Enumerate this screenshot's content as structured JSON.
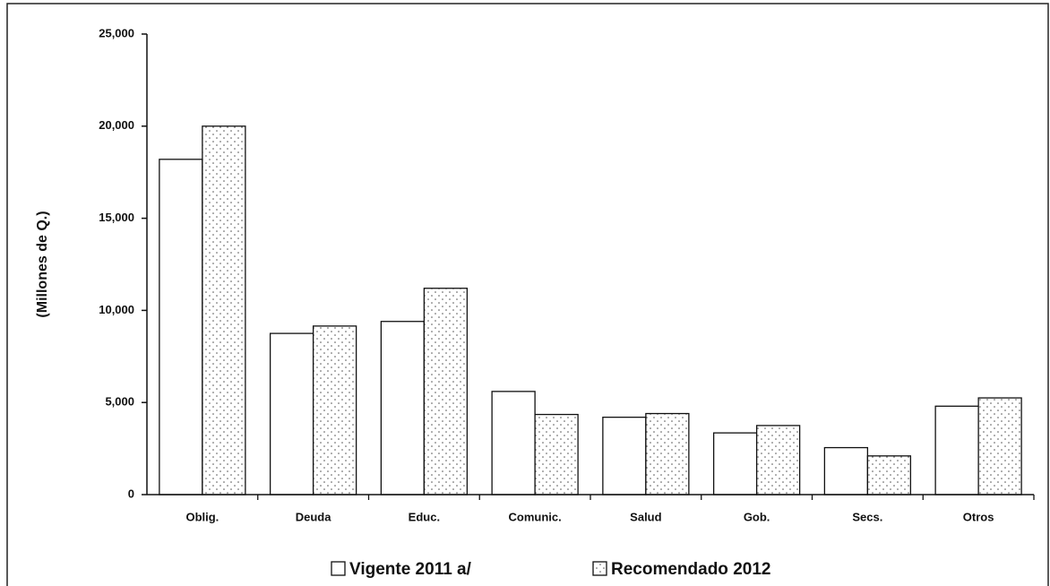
{
  "chart_data": {
    "type": "bar",
    "ylabel": "(Millones de Q.)",
    "categories": [
      "Oblig.",
      "Deuda",
      "Educ.",
      "Comunic.",
      "Salud",
      "Gob.",
      "Secs.",
      "Otros"
    ],
    "series": [
      {
        "name": "Vigente 2011 a/",
        "color": "#ffffff",
        "values": [
          18200,
          8750,
          9400,
          5600,
          4200,
          3350,
          2550,
          4800
        ]
      },
      {
        "name": "Recomendado 2012",
        "color": "dotted",
        "values": [
          20000,
          9150,
          11200,
          4350,
          4400,
          3750,
          2100,
          5250
        ]
      }
    ],
    "ylim": [
      0,
      25000
    ],
    "yticks": [
      0,
      {
        "value": 5000,
        "label": "5,000"
      },
      {
        "value": 10000,
        "label": "10,000"
      },
      {
        "value": 15000,
        "label": "15,000"
      },
      {
        "value": 20000,
        "label": "20,000"
      },
      {
        "value": 25000,
        "label": "25,000"
      }
    ],
    "legend": "bottom"
  }
}
